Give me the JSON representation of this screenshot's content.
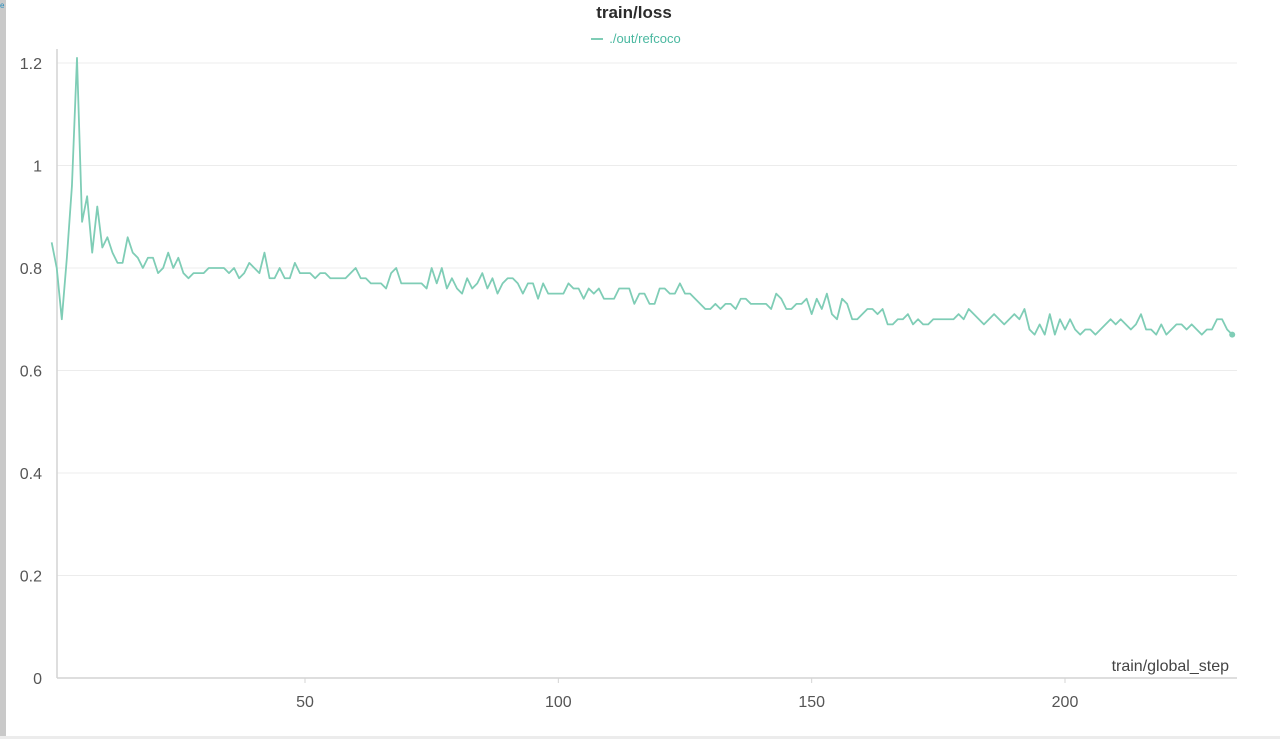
{
  "chart_data": {
    "type": "line",
    "title": "train/loss",
    "xlabel": "train/global_step",
    "ylabel": "",
    "xlim": [
      0,
      233
    ],
    "ylim": [
      0,
      1.2
    ],
    "x_ticks": [
      50,
      100,
      150,
      200
    ],
    "y_ticks": [
      0,
      0.2,
      0.4,
      0.6,
      0.8,
      1,
      1.2
    ],
    "x_tick_labels": [
      "50",
      "100",
      "150",
      "200"
    ],
    "y_tick_labels": [
      "0",
      "0.2",
      "0.4",
      "0.6",
      "0.8",
      "1",
      "1.2"
    ],
    "grid": true,
    "legend_position": "top-center",
    "series": [
      {
        "name": "./out/refcoco",
        "color": "#7fcdb6",
        "x_start": 0,
        "x_step": 1,
        "values": [
          0.85,
          0.8,
          0.7,
          0.82,
          0.96,
          1.21,
          0.89,
          0.94,
          0.83,
          0.92,
          0.84,
          0.86,
          0.83,
          0.81,
          0.81,
          0.86,
          0.83,
          0.82,
          0.8,
          0.82,
          0.82,
          0.79,
          0.8,
          0.83,
          0.8,
          0.82,
          0.79,
          0.78,
          0.79,
          0.79,
          0.79,
          0.8,
          0.8,
          0.8,
          0.8,
          0.79,
          0.8,
          0.78,
          0.79,
          0.81,
          0.8,
          0.79,
          0.83,
          0.78,
          0.78,
          0.8,
          0.78,
          0.78,
          0.81,
          0.79,
          0.79,
          0.79,
          0.78,
          0.79,
          0.79,
          0.78,
          0.78,
          0.78,
          0.78,
          0.79,
          0.8,
          0.78,
          0.78,
          0.77,
          0.77,
          0.77,
          0.76,
          0.79,
          0.8,
          0.77,
          0.77,
          0.77,
          0.77,
          0.77,
          0.76,
          0.8,
          0.77,
          0.8,
          0.76,
          0.78,
          0.76,
          0.75,
          0.78,
          0.76,
          0.77,
          0.79,
          0.76,
          0.78,
          0.75,
          0.77,
          0.78,
          0.78,
          0.77,
          0.75,
          0.77,
          0.77,
          0.74,
          0.77,
          0.75,
          0.75,
          0.75,
          0.75,
          0.77,
          0.76,
          0.76,
          0.74,
          0.76,
          0.75,
          0.76,
          0.74,
          0.74,
          0.74,
          0.76,
          0.76,
          0.76,
          0.73,
          0.75,
          0.75,
          0.73,
          0.73,
          0.76,
          0.76,
          0.75,
          0.75,
          0.77,
          0.75,
          0.75,
          0.74,
          0.73,
          0.72,
          0.72,
          0.73,
          0.72,
          0.73,
          0.73,
          0.72,
          0.74,
          0.74,
          0.73,
          0.73,
          0.73,
          0.73,
          0.72,
          0.75,
          0.74,
          0.72,
          0.72,
          0.73,
          0.73,
          0.74,
          0.71,
          0.74,
          0.72,
          0.75,
          0.71,
          0.7,
          0.74,
          0.73,
          0.7,
          0.7,
          0.71,
          0.72,
          0.72,
          0.71,
          0.72,
          0.69,
          0.69,
          0.7,
          0.7,
          0.71,
          0.69,
          0.7,
          0.69,
          0.69,
          0.7,
          0.7,
          0.7,
          0.7,
          0.7,
          0.71,
          0.7,
          0.72,
          0.71,
          0.7,
          0.69,
          0.7,
          0.71,
          0.7,
          0.69,
          0.7,
          0.71,
          0.7,
          0.72,
          0.68,
          0.67,
          0.69,
          0.67,
          0.71,
          0.67,
          0.7,
          0.68,
          0.7,
          0.68,
          0.67,
          0.68,
          0.68,
          0.67,
          0.68,
          0.69,
          0.7,
          0.69,
          0.7,
          0.69,
          0.68,
          0.69,
          0.71,
          0.68,
          0.68,
          0.67,
          0.69,
          0.67,
          0.68,
          0.69,
          0.69,
          0.68,
          0.69,
          0.68,
          0.67,
          0.68,
          0.68,
          0.7,
          0.7,
          0.68,
          0.67
        ]
      }
    ]
  }
}
